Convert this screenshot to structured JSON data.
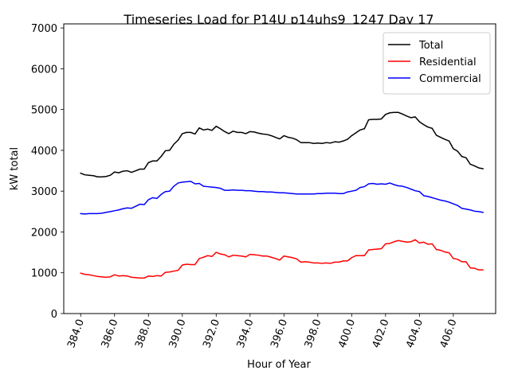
{
  "chart_data": {
    "type": "line",
    "title": "Timeseries Load for P14U p14uhs9_1247  Day 17",
    "xlabel": "Hour of Year",
    "ylabel": "kW total",
    "xlim": [
      383.0,
      408.5
    ],
    "ylim": [
      0,
      7100
    ],
    "xticks": [
      384,
      386,
      388,
      390,
      392,
      394,
      396,
      398,
      400,
      402,
      404,
      406
    ],
    "xtick_labels": [
      "384.0",
      "386.0",
      "388.0",
      "390.0",
      "392.0",
      "394.0",
      "396.0",
      "398.0",
      "400.0",
      "402.0",
      "404.0",
      "406.0"
    ],
    "yticks": [
      0,
      1000,
      2000,
      3000,
      4000,
      5000,
      6000,
      7000
    ],
    "ytick_labels": [
      "0",
      "1000",
      "2000",
      "3000",
      "4000",
      "5000",
      "6000",
      "7000"
    ],
    "legend_position": "top-right",
    "x": [
      384.0,
      384.25,
      384.5,
      384.75,
      385.0,
      385.25,
      385.5,
      385.75,
      386.0,
      386.25,
      386.5,
      386.75,
      387.0,
      387.25,
      387.5,
      387.75,
      388.0,
      388.25,
      388.5,
      388.75,
      389.0,
      389.25,
      389.5,
      389.75,
      390.0,
      390.25,
      390.5,
      390.75,
      391.0,
      391.25,
      391.5,
      391.75,
      392.0,
      392.25,
      392.5,
      392.75,
      393.0,
      393.25,
      393.5,
      393.75,
      394.0,
      394.25,
      394.5,
      394.75,
      395.0,
      395.25,
      395.5,
      395.75,
      396.0,
      396.25,
      396.5,
      396.75,
      397.0,
      397.25,
      397.5,
      397.75,
      398.0,
      398.25,
      398.5,
      398.75,
      399.0,
      399.25,
      399.5,
      399.75,
      400.0,
      400.25,
      400.5,
      400.75,
      401.0,
      401.25,
      401.5,
      401.75,
      402.0,
      402.25,
      402.5,
      402.75,
      403.0,
      403.25,
      403.5,
      403.75,
      404.0,
      404.25,
      404.5,
      404.75,
      405.0,
      405.25,
      405.5,
      405.75,
      406.0,
      406.25,
      406.5,
      406.75,
      407.0,
      407.25,
      407.5,
      407.75
    ],
    "series": [
      {
        "name": "Total",
        "color": "#000000",
        "values": [
          3440,
          3400,
          3390,
          3380,
          3350,
          3350,
          3360,
          3390,
          3470,
          3450,
          3490,
          3500,
          3460,
          3500,
          3540,
          3540,
          3700,
          3740,
          3740,
          3850,
          3990,
          4000,
          4150,
          4250,
          4410,
          4440,
          4440,
          4400,
          4550,
          4500,
          4520,
          4490,
          4590,
          4530,
          4460,
          4410,
          4470,
          4440,
          4440,
          4410,
          4460,
          4450,
          4420,
          4400,
          4390,
          4360,
          4320,
          4280,
          4360,
          4320,
          4300,
          4260,
          4190,
          4190,
          4190,
          4170,
          4180,
          4170,
          4190,
          4180,
          4210,
          4200,
          4230,
          4270,
          4360,
          4430,
          4500,
          4530,
          4750,
          4760,
          4760,
          4770,
          4880,
          4920,
          4930,
          4930,
          4890,
          4840,
          4800,
          4820,
          4700,
          4630,
          4570,
          4540,
          4370,
          4320,
          4270,
          4230,
          4040,
          3980,
          3850,
          3820,
          3660,
          3620,
          3570,
          3550
        ]
      },
      {
        "name": "Residential",
        "color": "#ff0000",
        "values": [
          990,
          960,
          950,
          930,
          910,
          900,
          890,
          900,
          950,
          920,
          930,
          920,
          890,
          880,
          870,
          870,
          920,
          910,
          930,
          920,
          1010,
          1020,
          1040,
          1060,
          1190,
          1210,
          1200,
          1200,
          1350,
          1380,
          1420,
          1400,
          1500,
          1460,
          1440,
          1390,
          1430,
          1420,
          1410,
          1390,
          1450,
          1440,
          1430,
          1410,
          1410,
          1380,
          1350,
          1310,
          1410,
          1390,
          1370,
          1340,
          1260,
          1270,
          1260,
          1240,
          1240,
          1230,
          1240,
          1230,
          1260,
          1260,
          1290,
          1290,
          1370,
          1420,
          1420,
          1420,
          1560,
          1570,
          1580,
          1590,
          1710,
          1720,
          1760,
          1790,
          1770,
          1750,
          1760,
          1810,
          1730,
          1750,
          1700,
          1710,
          1570,
          1550,
          1510,
          1490,
          1350,
          1330,
          1270,
          1270,
          1120,
          1110,
          1070,
          1070
        ]
      },
      {
        "name": "Commercial",
        "color": "#0000ff",
        "values": [
          2450,
          2440,
          2450,
          2450,
          2450,
          2460,
          2480,
          2500,
          2520,
          2540,
          2570,
          2590,
          2580,
          2630,
          2680,
          2670,
          2790,
          2840,
          2820,
          2920,
          2990,
          3000,
          3120,
          3200,
          3220,
          3230,
          3240,
          3180,
          3190,
          3120,
          3110,
          3100,
          3090,
          3070,
          3020,
          3020,
          3030,
          3020,
          3020,
          3010,
          3010,
          3000,
          2990,
          2990,
          2980,
          2980,
          2970,
          2960,
          2960,
          2950,
          2940,
          2930,
          2930,
          2930,
          2930,
          2930,
          2940,
          2940,
          2950,
          2950,
          2950,
          2940,
          2940,
          2980,
          3000,
          3020,
          3090,
          3110,
          3180,
          3190,
          3170,
          3180,
          3170,
          3200,
          3160,
          3130,
          3120,
          3090,
          3050,
          3010,
          2990,
          2890,
          2870,
          2840,
          2810,
          2780,
          2760,
          2730,
          2690,
          2650,
          2580,
          2560,
          2540,
          2510,
          2500,
          2480
        ]
      }
    ]
  }
}
